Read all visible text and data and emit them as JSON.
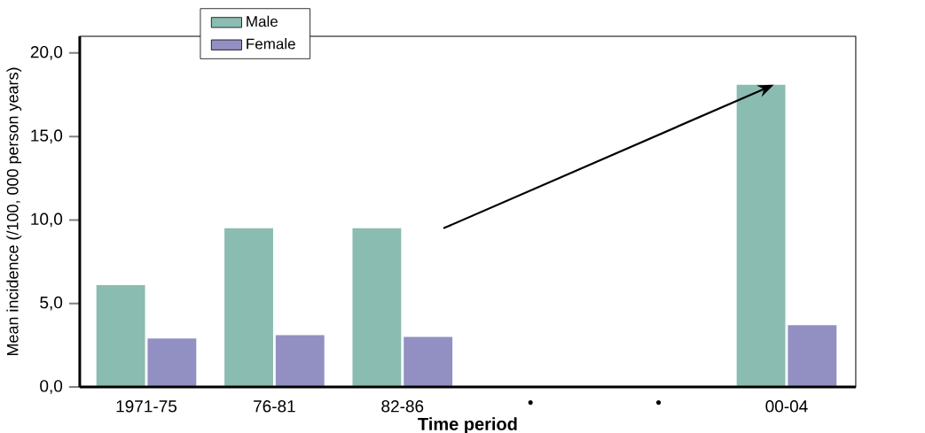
{
  "chart_data": {
    "type": "bar",
    "xlabel": "Time period",
    "ylabel": "Mean incidence (/100, 000 person years)",
    "categories": [
      "1971-75",
      "76-81",
      "82-86",
      "•",
      "•",
      "00-04"
    ],
    "series": [
      {
        "name": "Male",
        "color": "#8bbcb1",
        "values": [
          6.1,
          9.5,
          9.5,
          null,
          null,
          18.1
        ]
      },
      {
        "name": "Female",
        "color": "#9290c2",
        "values": [
          2.9,
          3.1,
          3.0,
          null,
          null,
          3.7
        ]
      }
    ],
    "ylim": [
      0,
      21
    ],
    "yticks": [
      {
        "value": 0,
        "label": "0,0"
      },
      {
        "value": 5,
        "label": "5,0"
      },
      {
        "value": 10,
        "label": "10,0"
      },
      {
        "value": 15,
        "label": "15,0"
      },
      {
        "value": 20,
        "label": "20,0"
      }
    ],
    "legend": "top left",
    "grid": false
  }
}
